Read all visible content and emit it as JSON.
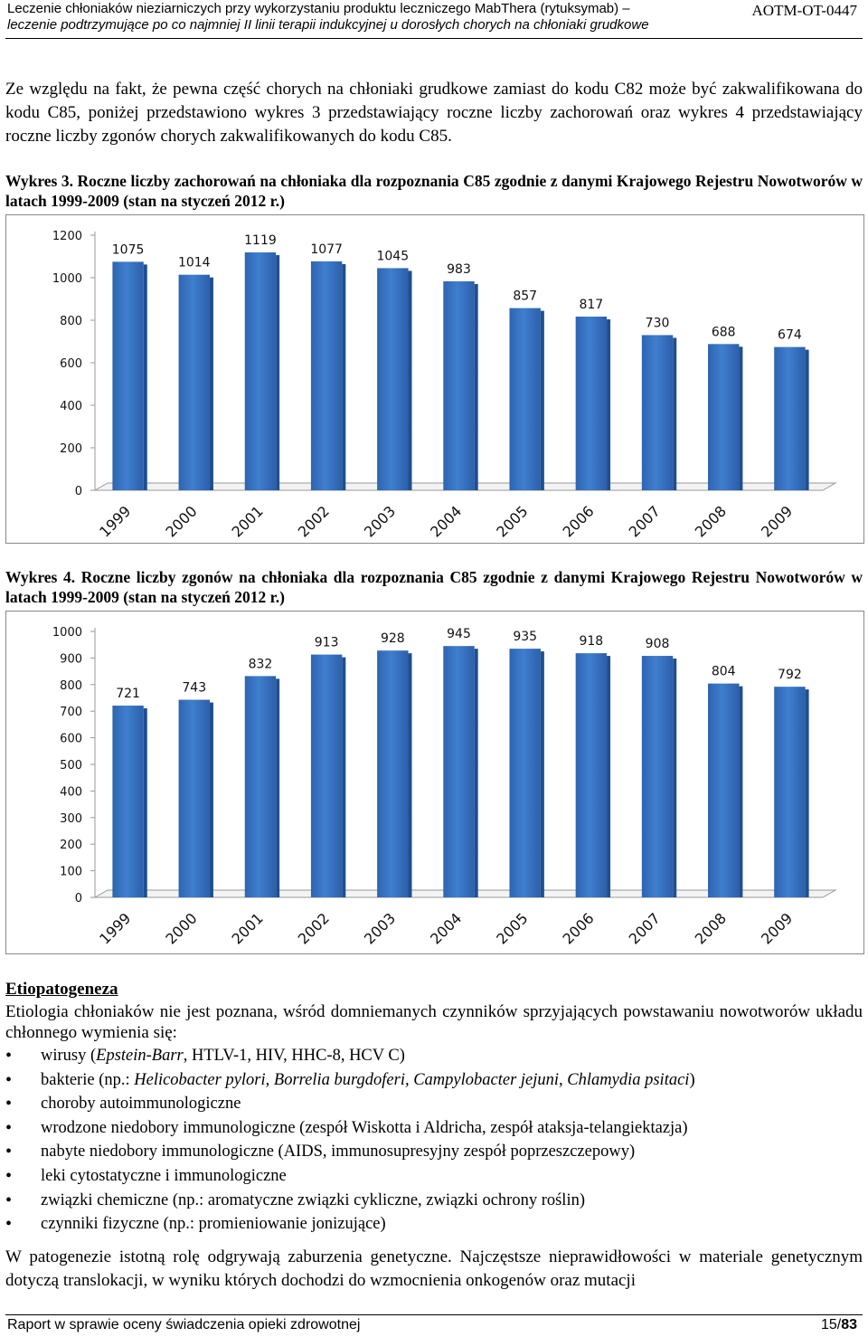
{
  "header": {
    "line1": "Leczenie chłoniaków nieziarniczych przy wykorzystaniu produktu leczniczego MabThera (rytuksymab) –",
    "line2": "leczenie podtrzymujące po co najmniej II linii terapii indukcyjnej u dorosłych chorych na chłoniaki grudkowe",
    "code": "AOTM-OT-0447"
  },
  "intro": "Ze względu na fakt, że pewna część chorych na chłoniaki grudkowe zamiast do kodu C82 może być zakwalifikowana do kodu C85, poniżej przedstawiono wykres 3 przedstawiający roczne liczby zachorowań oraz wykres 4 przedstawiający roczne liczby zgonów chorych zakwalifikowanych do kodu C85.",
  "chart3_caption": {
    "label": "Wykres 3.",
    "text": "Roczne liczby zachorowań na chłoniaka dla rozpoznania C85 zgodnie z danymi Krajowego Rejestru Nowotworów w latach 1999-2009 (stan na styczeń 2012 r.)"
  },
  "chart4_caption": {
    "label": "Wykres 4.",
    "text": "Roczne liczby zgonów na chłoniaka dla rozpoznania C85 zgodnie z danymi Krajowego Rejestru Nowotworów w latach 1999-2009 (stan na styczeń 2012 r.)"
  },
  "chart_data": [
    {
      "type": "bar",
      "categories": [
        "1999",
        "2000",
        "2001",
        "2002",
        "2003",
        "2004",
        "2005",
        "2006",
        "2007",
        "2008",
        "2009"
      ],
      "values": [
        1075,
        1014,
        1119,
        1077,
        1045,
        983,
        857,
        817,
        730,
        688,
        674
      ],
      "yticks": [
        0,
        200,
        400,
        600,
        800,
        1000,
        1200
      ],
      "ylim": [
        0,
        1200
      ],
      "bar_color": "#3f7fcf",
      "grid": false,
      "legend": "none"
    },
    {
      "type": "bar",
      "categories": [
        "1999",
        "2000",
        "2001",
        "2002",
        "2003",
        "2004",
        "2005",
        "2006",
        "2007",
        "2008",
        "2009"
      ],
      "values": [
        721,
        743,
        832,
        913,
        928,
        945,
        935,
        918,
        908,
        804,
        792
      ],
      "yticks": [
        0,
        100,
        200,
        300,
        400,
        500,
        600,
        700,
        800,
        900,
        1000
      ],
      "ylim": [
        0,
        1000
      ],
      "bar_color": "#3f7fcf",
      "grid": false,
      "legend": "none"
    }
  ],
  "etio": {
    "title": "Etiopatogeneza",
    "text": "Etiologia chłoniaków nie jest poznana, wśród domniemanych czynników sprzyjających powstawaniu nowotworów układu chłonnego wymienia się:",
    "b1_pre": "wirusy (",
    "b1_it": "Epstein-Barr",
    "b1_post": ", HTLV-1, HIV, HHC-8, HCV C)",
    "b2_pre": "bakterie (np.: ",
    "b2_it": "Helicobacter pylori, Borrelia burgdoferi, Campylobacter jejuni, Chlamydia psitaci",
    "b2_post": ")",
    "b3": "choroby autoimmunologiczne",
    "b4": "wrodzone niedobory immunologiczne (zespół Wiskotta i Aldricha, zespół ataksja-telangiektazja)",
    "b5": "nabyte niedobory immunologiczne (AIDS, immunosupresyjny zespół poprzeszczepowy)",
    "b6": "leki cytostatyczne i immunologiczne",
    "b7": "związki chemiczne (np.: aromatyczne związki cykliczne, związki ochrony roślin)",
    "b8": "czynniki fizyczne (np.: promieniowanie jonizujące)"
  },
  "para2": "W patogenezie istotną rolę odgrywają zaburzenia genetyczne. Najczęstsze nieprawidłowości w materiale genetycznym dotyczą translokacji, w wyniku których dochodzi do wzmocnienia onkogenów oraz mutacji",
  "footer": {
    "left": "Raport w sprawie oceny świadczenia opieki zdrowotnej",
    "page": "15/",
    "total": "83"
  }
}
